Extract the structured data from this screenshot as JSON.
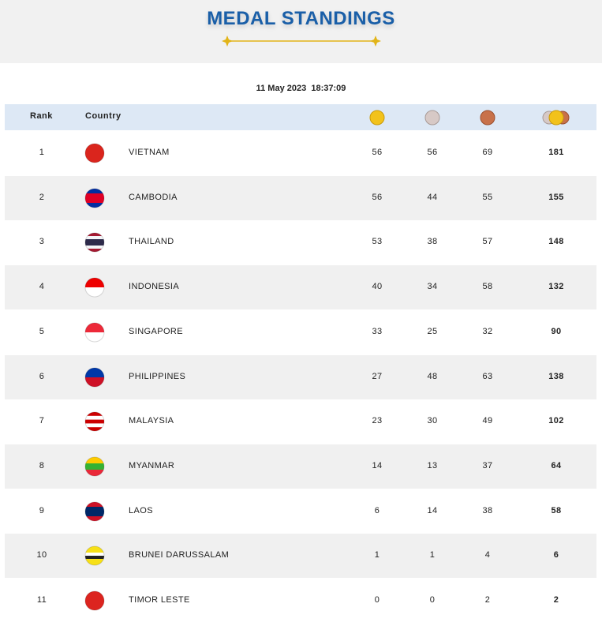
{
  "header": {
    "title": "MEDAL STANDINGS",
    "timestamp": "11 May 2023  18:37:09"
  },
  "table": {
    "columns": [
      "Rank",
      "Country"
    ],
    "rows": [
      [
        1,
        "VIETNAM",
        56,
        56,
        69,
        181
      ],
      [
        2,
        "CAMBODIA",
        56,
        44,
        55,
        155
      ],
      [
        3,
        "THAILAND",
        53,
        38,
        57,
        148
      ],
      [
        4,
        "INDONESIA",
        40,
        34,
        58,
        132
      ],
      [
        5,
        "SINGAPORE",
        33,
        25,
        32,
        90
      ],
      [
        6,
        "PHILIPPINES",
        27,
        48,
        63,
        138
      ],
      [
        7,
        "MALAYSIA",
        23,
        30,
        49,
        102
      ],
      [
        8,
        "MYANMAR",
        14,
        13,
        37,
        64
      ],
      [
        9,
        "LAOS",
        6,
        14,
        38,
        58
      ],
      [
        10,
        "BRUNEI DARUSSALAM",
        1,
        1,
        4,
        6
      ],
      [
        11,
        "TIMOR LESTE",
        0,
        0,
        2,
        2
      ]
    ]
  }
}
